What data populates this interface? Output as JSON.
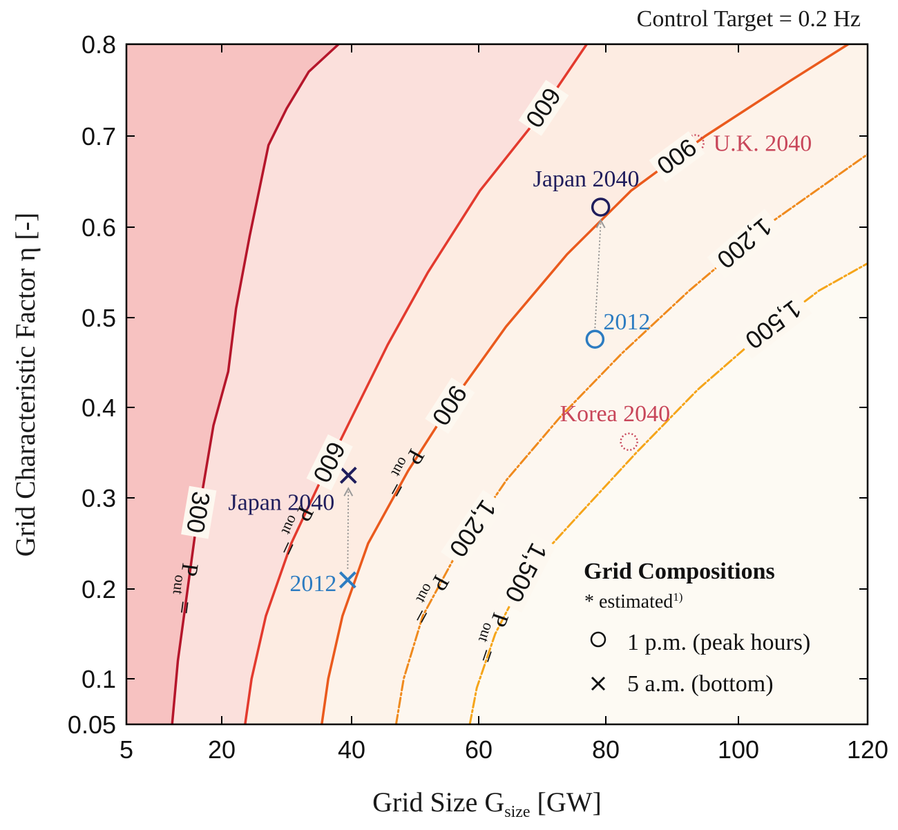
{
  "chart_data": {
    "type": "contour",
    "title": "Control Target = 0.2 Hz",
    "xlabel": "Grid Size G",
    "xlabel_sub": "size",
    "xlabel_unit": "[GW]",
    "ylabel": "Grid Characteristic Factor η [-]",
    "xlim": [
      5,
      120
    ],
    "ylim": [
      0.05,
      0.8
    ],
    "xticks": [
      5,
      20,
      40,
      60,
      80,
      100,
      120
    ],
    "xtick_labels": [
      "5",
      "20",
      "40",
      "60",
      "80",
      "100",
      "120"
    ],
    "yticks": [
      0.05,
      0.1,
      0.2,
      0.3,
      0.4,
      0.5,
      0.6,
      0.7,
      0.8
    ],
    "ytick_labels": [
      "0.05",
      "0.1",
      "0.2",
      "0.3",
      "0.4",
      "0.5",
      "0.6",
      "0.7",
      "0.8"
    ],
    "contour_prefix": "P",
    "contour_prefix_sub": "out",
    "contour_prefix_eq": "=",
    "contours": [
      {
        "level": 300,
        "label": "300",
        "color": "#b5162b",
        "dashed": false,
        "x": [
          12.2,
          13.1,
          15.8,
          18.7,
          21.0,
          22.2,
          24.3,
          27.2,
          30.0,
          33.4,
          38.0
        ],
        "y": [
          0.05,
          0.12,
          0.26,
          0.38,
          0.44,
          0.51,
          0.59,
          0.69,
          0.73,
          0.77,
          0.8
        ]
      },
      {
        "level": 600,
        "label": "600",
        "color": "#e33a2e",
        "dashed": false,
        "x": [
          23.6,
          24.6,
          26.8,
          30.7,
          35.3,
          40.1,
          45.7,
          52.0,
          60.2,
          68.2,
          77.0
        ],
        "y": [
          0.05,
          0.1,
          0.17,
          0.25,
          0.32,
          0.39,
          0.47,
          0.55,
          0.64,
          0.71,
          0.8
        ]
      },
      {
        "level": 900,
        "label": "900",
        "color": "#ea5a1d",
        "dashed": false,
        "x": [
          35.4,
          36.4,
          38.6,
          42.6,
          48.9,
          56.2,
          64.3,
          73.9,
          83.8,
          95.0,
          108.0,
          117.0
        ],
        "y": [
          0.05,
          0.1,
          0.17,
          0.25,
          0.33,
          0.41,
          0.49,
          0.57,
          0.64,
          0.7,
          0.76,
          0.8
        ]
      },
      {
        "level": 1200,
        "label": "1,200",
        "color": "#ef8a1e",
        "dashed": true,
        "x": [
          47.0,
          48.2,
          51.2,
          56.6,
          64.4,
          72.9,
          82.4,
          92.6,
          104.0,
          114.0,
          120.0
        ],
        "y": [
          0.05,
          0.1,
          0.17,
          0.24,
          0.32,
          0.39,
          0.46,
          0.53,
          0.6,
          0.65,
          0.68
        ]
      },
      {
        "level": 1500,
        "label": "1,500",
        "color": "#f5a51a",
        "dashed": true,
        "x": [
          58.6,
          59.7,
          62.6,
          67.7,
          75.6,
          84.6,
          93.9,
          103.3,
          112.5,
          120.0
        ],
        "y": [
          0.05,
          0.09,
          0.15,
          0.22,
          0.28,
          0.35,
          0.42,
          0.48,
          0.53,
          0.56
        ]
      }
    ],
    "points": [
      {
        "label": "Japan 2040",
        "x": 79.2,
        "y": 0.622,
        "marker": "circle",
        "color": "#1f1d5c"
      },
      {
        "label": "2012",
        "x": 78.3,
        "y": 0.476,
        "marker": "circle",
        "color": "#2d7cc1"
      },
      {
        "label": "U.K. 2040",
        "x": 93.5,
        "y": 0.692,
        "marker": "dotted-circle",
        "color": "#c8465a"
      },
      {
        "label": "Korea 2040",
        "x": 83.5,
        "y": 0.362,
        "marker": "dotted-circle",
        "color": "#c8465a"
      },
      {
        "label": "Japan 2040",
        "x": 39.5,
        "y": 0.325,
        "marker": "cross",
        "color": "#1f1d5c"
      },
      {
        "label": "2012",
        "x": 39.4,
        "y": 0.21,
        "marker": "cross",
        "color": "#2d7cc1"
      }
    ],
    "legend": {
      "title": "Grid Compositions",
      "note": "* estimated",
      "note_sup": "1)",
      "entries": [
        {
          "marker": "circle",
          "label": "1 p.m. (peak hours)"
        },
        {
          "marker": "cross",
          "label": "5 a.m. (bottom)"
        }
      ],
      "position": "bottom-right"
    },
    "grid": false
  }
}
